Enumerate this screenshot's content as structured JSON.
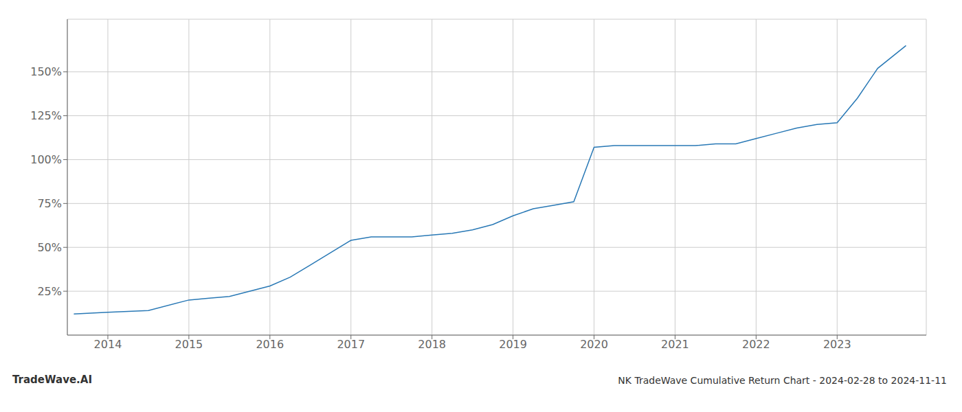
{
  "chart_data": {
    "type": "line",
    "title": "NK TradeWave Cumulative Return Chart - 2024-02-28 to 2024-11-11",
    "annotations": [
      "TradeWave.AI"
    ],
    "x": [
      2013.58,
      2014.0,
      2014.25,
      2014.5,
      2015.0,
      2015.25,
      2015.5,
      2016.0,
      2016.25,
      2016.5,
      2016.75,
      2017.0,
      2017.25,
      2017.5,
      2017.75,
      2018.0,
      2018.25,
      2018.5,
      2018.75,
      2019.0,
      2019.25,
      2019.5,
      2019.75,
      2020.0,
      2020.25,
      2020.5,
      2020.75,
      2021.0,
      2021.25,
      2021.5,
      2021.75,
      2022.0,
      2022.25,
      2022.5,
      2022.75,
      2023.0,
      2023.25,
      2023.5,
      2023.85
    ],
    "values": [
      12,
      13,
      13.5,
      14,
      20,
      21,
      22,
      28,
      33,
      40,
      47,
      54,
      56,
      56,
      56,
      57,
      58,
      60,
      63,
      68,
      72,
      74,
      76,
      107,
      108,
      108,
      108,
      108,
      108,
      109,
      109,
      112,
      115,
      118,
      120,
      121,
      135,
      152,
      165
    ],
    "color": "#2878b5",
    "xlim": [
      2013.5,
      2024.1
    ],
    "ylim": [
      0,
      180
    ],
    "xticks": [
      2014,
      2015,
      2016,
      2017,
      2018,
      2019,
      2020,
      2021,
      2022,
      2023
    ],
    "yticks": [
      {
        "value": 25,
        "label": "25%"
      },
      {
        "value": 50,
        "label": "50%"
      },
      {
        "value": 75,
        "label": "75%"
      },
      {
        "value": 100,
        "label": "100%"
      },
      {
        "value": 125,
        "label": "125%"
      },
      {
        "value": 150,
        "label": "150%"
      }
    ],
    "grid": true
  }
}
